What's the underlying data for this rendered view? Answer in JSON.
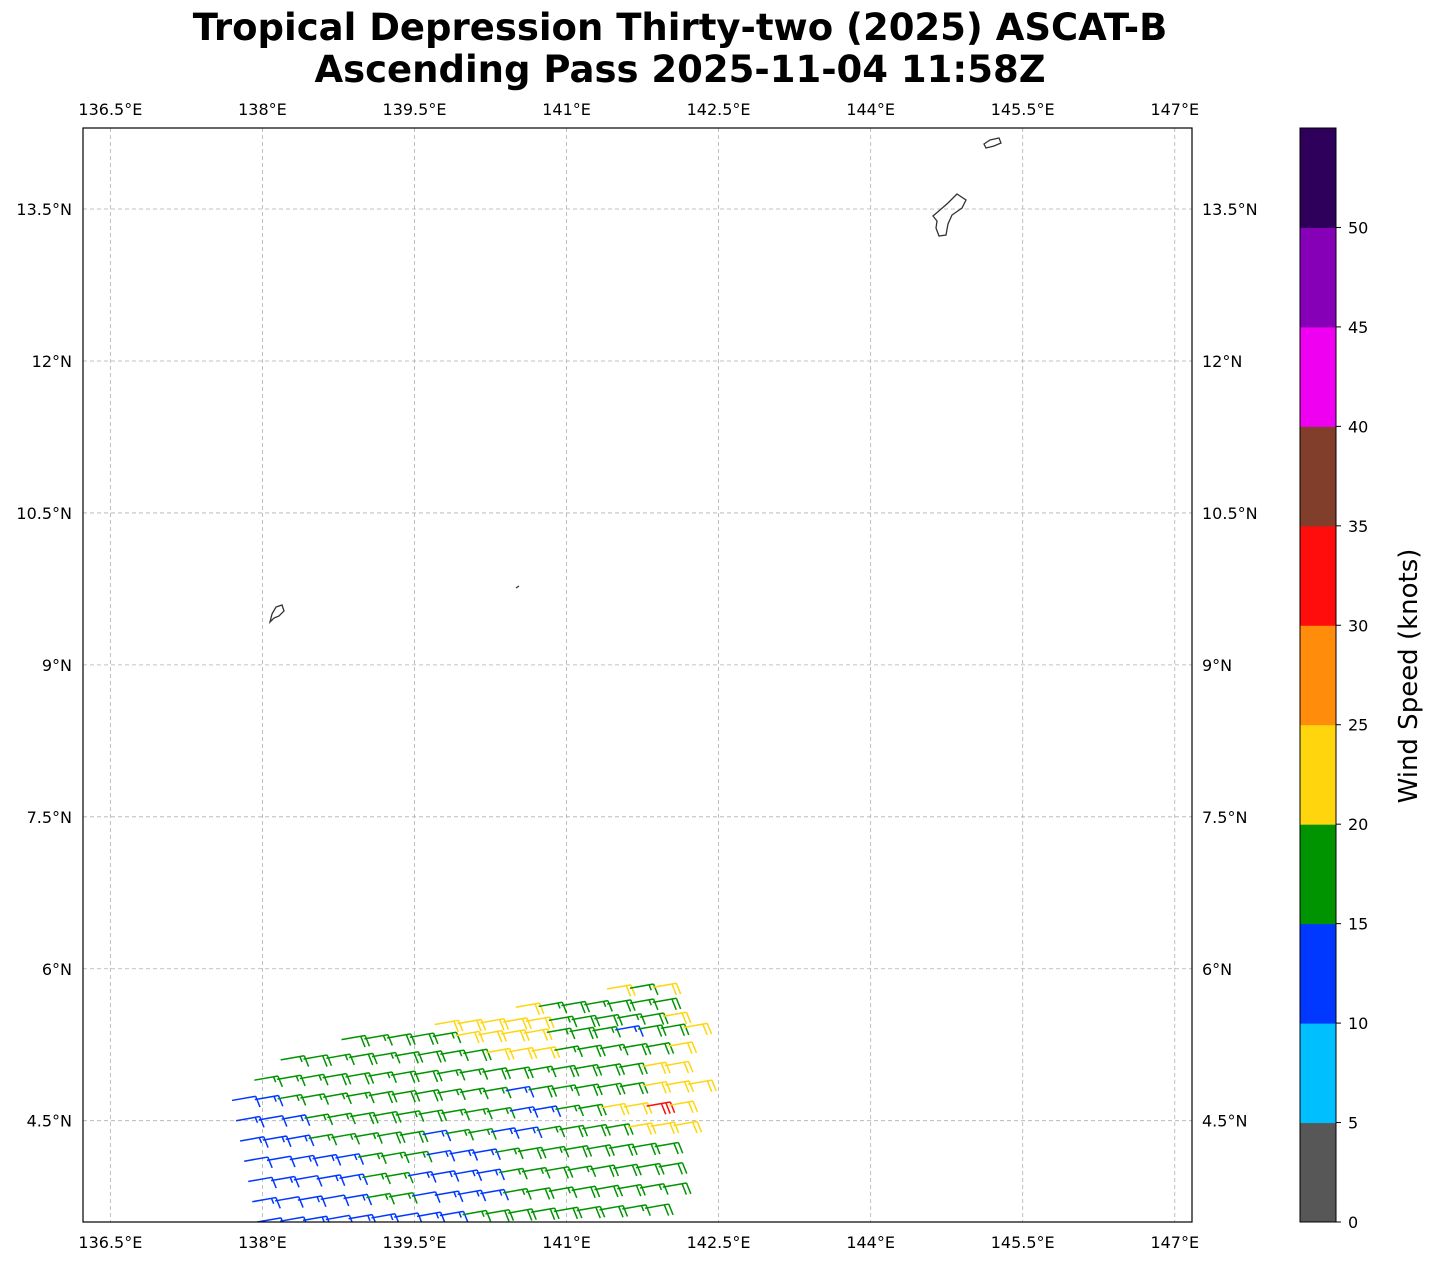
{
  "chart_data": {
    "type": "wind_barb_map",
    "title": [
      "Tropical Depression Thirty-two (2025) ASCAT-B",
      "Ascending Pass 2025-11-04 11:58Z"
    ],
    "x_ticks": [
      {
        "value": 136.5,
        "label": "136.5°E"
      },
      {
        "value": 138.0,
        "label": "138°E"
      },
      {
        "value": 139.5,
        "label": "139.5°E"
      },
      {
        "value": 141.0,
        "label": "141°E"
      },
      {
        "value": 142.5,
        "label": "142.5°E"
      },
      {
        "value": 144.0,
        "label": "144°E"
      },
      {
        "value": 145.5,
        "label": "145.5°E"
      },
      {
        "value": 147.0,
        "label": "147°E"
      }
    ],
    "y_ticks": [
      {
        "value": 13.5,
        "label": "13.5°N"
      },
      {
        "value": 12.0,
        "label": "12°N"
      },
      {
        "value": 10.5,
        "label": "10.5°N"
      },
      {
        "value": 9.0,
        "label": "9°N"
      },
      {
        "value": 7.5,
        "label": "7.5°N"
      },
      {
        "value": 6.0,
        "label": "6°N"
      },
      {
        "value": 4.5,
        "label": "4.5°N"
      }
    ],
    "xlim": [
      136.23,
      147.17
    ],
    "ylim": [
      3.5,
      14.3
    ],
    "grid": true,
    "colorbar": {
      "label": "Wind Speed (knots)",
      "range": [
        0,
        55
      ],
      "ticks": [
        0,
        5,
        10,
        15,
        20,
        25,
        30,
        35,
        40,
        45,
        50
      ],
      "bins": [
        {
          "from": 0,
          "to": 5,
          "color": "#575757"
        },
        {
          "from": 5,
          "to": 10,
          "color": "#00bfff"
        },
        {
          "from": 10,
          "to": 15,
          "color": "#0038ff"
        },
        {
          "from": 15,
          "to": 20,
          "color": "#009400"
        },
        {
          "from": 20,
          "to": 25,
          "color": "#ffd50d"
        },
        {
          "from": 25,
          "to": 30,
          "color": "#ff8c0a"
        },
        {
          "from": 30,
          "to": 35,
          "color": "#ff0d0d"
        },
        {
          "from": 35,
          "to": 40,
          "color": "#803e2b"
        },
        {
          "from": 40,
          "to": 45,
          "color": "#f000f0"
        },
        {
          "from": 45,
          "to": 50,
          "color": "#8600b8"
        },
        {
          "from": 50,
          "to": 55,
          "color": "#2e005c"
        }
      ]
    },
    "wind_barbs": {
      "description": "ASCAT-B wind vectors, rows of barbs in the swath's south-west corner",
      "direction_from_deg": 80,
      "rows": [
        {
          "lat_start": 3.5,
          "lon_start": 137.95,
          "lon_step": 0.225,
          "speeds": [
            12,
            12,
            13,
            12,
            13,
            13,
            12,
            13,
            14,
            17,
            18,
            19,
            18,
            18,
            19,
            18,
            17,
            18
          ]
        },
        {
          "lat_start": 3.7,
          "lon_start": 137.9,
          "lon_step": 0.225,
          "speeds": [
            13,
            12,
            13,
            12,
            14,
            17,
            17,
            12,
            13,
            14,
            14,
            17,
            18,
            17,
            18,
            18,
            18,
            17,
            19
          ]
        },
        {
          "lat_start": 3.9,
          "lon_start": 137.86,
          "lon_step": 0.225,
          "speeds": [
            12,
            13,
            12,
            13,
            14,
            16,
            17,
            13,
            13,
            13,
            14,
            17,
            17,
            18,
            17,
            18,
            18,
            18,
            19
          ]
        },
        {
          "lat_start": 4.1,
          "lon_start": 137.82,
          "lon_step": 0.225,
          "speeds": [
            12,
            12,
            13,
            14,
            13,
            17,
            17,
            17,
            13,
            14,
            13,
            17,
            18,
            17,
            18,
            18,
            18,
            19,
            19
          ]
        },
        {
          "lat_start": 4.3,
          "lon_start": 137.78,
          "lon_step": 0.225,
          "speeds": [
            13,
            13,
            13,
            17,
            17,
            17,
            18,
            18,
            13,
            17,
            17,
            14,
            13,
            17,
            18,
            18,
            18,
            20,
            22,
            21
          ]
        },
        {
          "lat_start": 4.5,
          "lon_start": 137.74,
          "lon_step": 0.225,
          "speeds": [
            13,
            12,
            14,
            17,
            17,
            18,
            18,
            17,
            18,
            17,
            17,
            17,
            13,
            14,
            17,
            18,
            20,
            22,
            31,
            22
          ]
        },
        {
          "lat_start": 4.7,
          "lon_start": 137.7,
          "lon_step": 0.225,
          "speeds": [
            12,
            13,
            17,
            17,
            17,
            17,
            18,
            18,
            18,
            17,
            17,
            17,
            13,
            18,
            17,
            18,
            18,
            18,
            21,
            22,
            22
          ]
        },
        {
          "lat_start": 4.9,
          "lon_start": 137.92,
          "lon_step": 0.225,
          "speeds": [
            17,
            17,
            17,
            18,
            18,
            17,
            18,
            18,
            17,
            17,
            18,
            18,
            17,
            18,
            18,
            18,
            18,
            22,
            22
          ]
        },
        {
          "lat_start": 5.1,
          "lon_start": 138.18,
          "lon_step": 0.225,
          "speeds": [
            17,
            18,
            17,
            18,
            17,
            18,
            18,
            17,
            18,
            22,
            22,
            22,
            17,
            18,
            17,
            18,
            18,
            22
          ]
        },
        {
          "lat_start": 5.3,
          "lon_start": 138.78,
          "lon_step": 0.225,
          "speeds": [
            18,
            17,
            18,
            18,
            17,
            22,
            22,
            22,
            22,
            17,
            18,
            17,
            13,
            18,
            18,
            22
          ]
        },
        {
          "lat_start": 5.45,
          "lon_start": 139.7,
          "lon_step": 0.225,
          "speeds": [
            22,
            22,
            22,
            22,
            22,
            17,
            18,
            18,
            17,
            18,
            22
          ]
        },
        {
          "lat_start": 5.62,
          "lon_start": 140.5,
          "lon_step": 0.225,
          "speeds": [
            22,
            17,
            18,
            17,
            18,
            17,
            18
          ]
        },
        {
          "lat_start": 5.8,
          "lon_start": 141.4,
          "lon_step": 0.225,
          "speeds": [
            22,
            17,
            22
          ]
        }
      ]
    }
  }
}
